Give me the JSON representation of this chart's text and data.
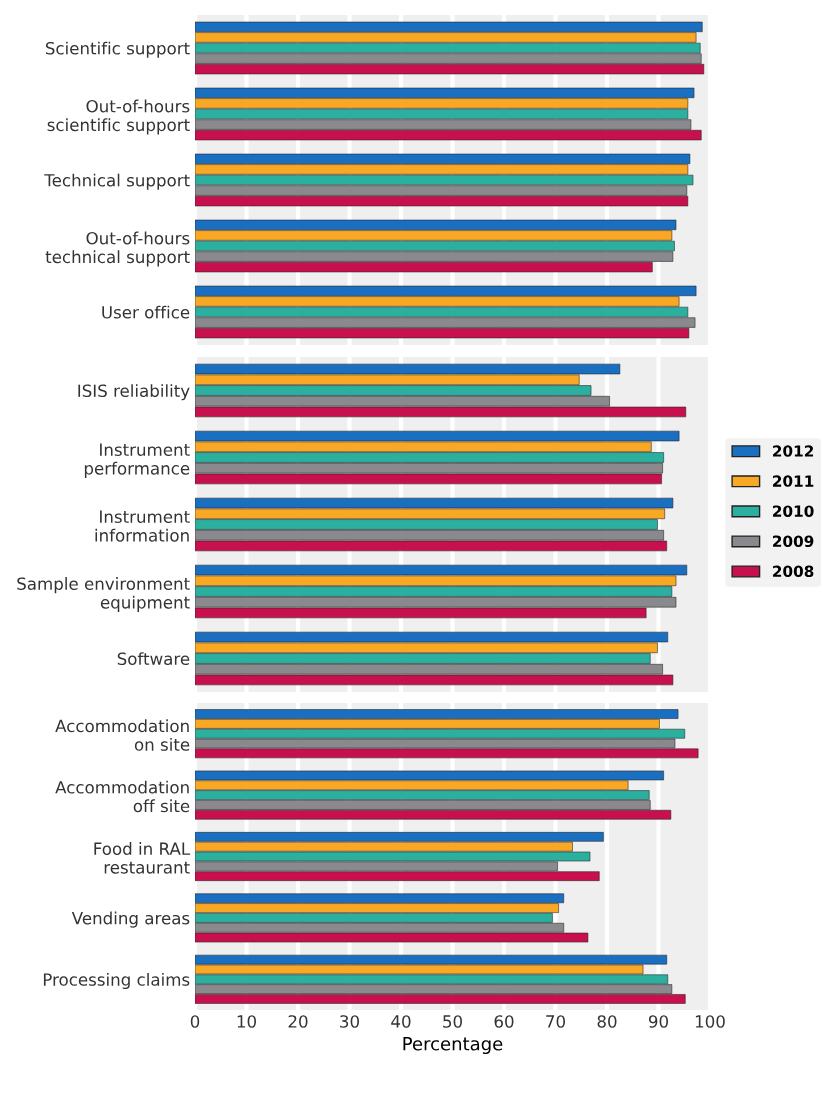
{
  "chart_data": [
    {
      "type": "bar",
      "orientation": "horizontal",
      "categories": [
        "Scientific support",
        "Out-of-hours\nscientific support",
        "Technical support",
        "Out-of-hours\ntechnical support",
        "User office"
      ],
      "xlim": [
        0,
        100
      ],
      "xticks": [
        0,
        10,
        20,
        30,
        40,
        50,
        60,
        70,
        80,
        90,
        100
      ],
      "grid": "x",
      "tick_labels": "y",
      "legend": "right",
      "series": [
        {
          "name": "2012",
          "color": "#1a6fc0",
          "values": [
            98.5,
            96.9,
            96.1,
            93.4,
            97.3
          ]
        },
        {
          "name": "2011",
          "color": "#f9a825",
          "values": [
            97.3,
            95.7,
            95.7,
            92.6,
            94.0
          ]
        },
        {
          "name": "2010",
          "color": "#2bb0a0",
          "values": [
            98.1,
            95.7,
            96.7,
            93.1,
            95.7
          ]
        },
        {
          "name": "2009",
          "color": "#8a8a8e",
          "values": [
            98.3,
            96.3,
            95.5,
            92.8,
            97.1
          ]
        },
        {
          "name": "2008",
          "color": "#c8104e",
          "values": [
            98.8,
            98.3,
            95.7,
            88.8,
            95.9
          ]
        }
      ]
    },
    {
      "type": "bar",
      "orientation": "horizontal",
      "categories": [
        "ISIS reliability",
        "Instrument\nperformance",
        "Instrument\ninformation",
        "Sample environment\nequipment",
        "Software"
      ],
      "xlim": [
        0,
        100
      ],
      "xticks": [
        0,
        10,
        20,
        30,
        40,
        50,
        60,
        70,
        80,
        90,
        100
      ],
      "grid": "x",
      "tick_labels": "y",
      "series": [
        {
          "name": "2012",
          "color": "#1a6fc0",
          "values": [
            82.5,
            94.0,
            92.8,
            95.5,
            91.8
          ]
        },
        {
          "name": "2011",
          "color": "#f9a825",
          "values": [
            74.6,
            88.6,
            91.2,
            93.4,
            89.8
          ]
        },
        {
          "name": "2010",
          "color": "#2bb0a0",
          "values": [
            76.9,
            91.0,
            89.8,
            92.6,
            88.4
          ]
        },
        {
          "name": "2009",
          "color": "#8a8a8e",
          "values": [
            80.5,
            90.8,
            91.0,
            93.4,
            90.8
          ]
        },
        {
          "name": "2008",
          "color": "#c8104e",
          "values": [
            95.3,
            90.6,
            91.6,
            87.6,
            92.8
          ]
        }
      ]
    },
    {
      "type": "bar",
      "orientation": "horizontal",
      "categories": [
        "Accommodation\non site",
        "Accommodation\noff site",
        "Food in RAL\nrestaurant",
        "Vending areas",
        "Processing claims"
      ],
      "xlim": [
        0,
        100
      ],
      "xticks": [
        0,
        10,
        20,
        30,
        40,
        50,
        60,
        70,
        80,
        90,
        100
      ],
      "grid": "x",
      "xlabel": "Percentage",
      "series": [
        {
          "name": "2012",
          "color": "#1a6fc0",
          "values": [
            93.8,
            91.0,
            79.3,
            71.6,
            91.6
          ]
        },
        {
          "name": "2011",
          "color": "#f9a825",
          "values": [
            90.2,
            84.1,
            73.3,
            70.6,
            87.0
          ]
        },
        {
          "name": "2010",
          "color": "#2bb0a0",
          "values": [
            95.1,
            88.2,
            76.7,
            69.4,
            91.8
          ]
        },
        {
          "name": "2009",
          "color": "#8a8a8e",
          "values": [
            93.2,
            88.4,
            70.4,
            71.6,
            92.6
          ]
        },
        {
          "name": "2008",
          "color": "#c8104e",
          "values": [
            97.7,
            92.4,
            78.5,
            76.3,
            95.2
          ]
        }
      ]
    }
  ]
}
